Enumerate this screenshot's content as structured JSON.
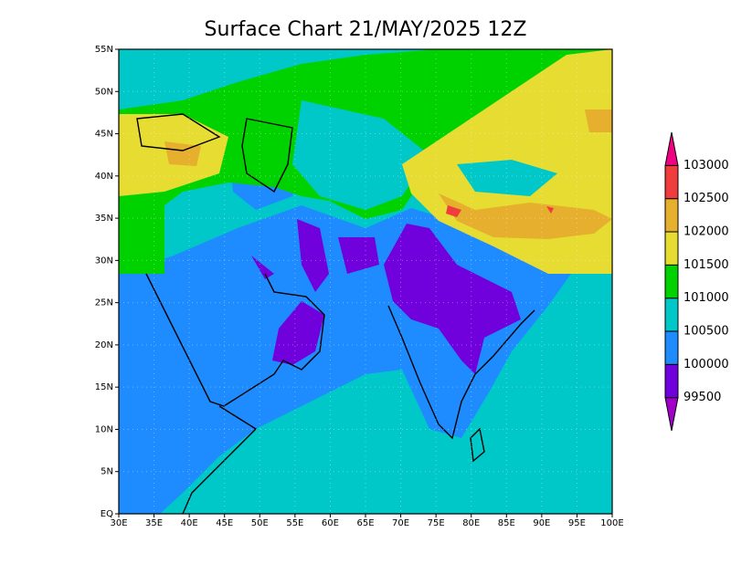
{
  "chart_data": {
    "type": "filled-contour",
    "title": "Surface Chart 21/MAY/2025 12Z",
    "xlim": [
      30,
      100
    ],
    "ylim": [
      0,
      55
    ],
    "xticks": [
      {
        "value": 30,
        "label": "30E"
      },
      {
        "value": 35,
        "label": "35E"
      },
      {
        "value": 40,
        "label": "40E"
      },
      {
        "value": 45,
        "label": "45E"
      },
      {
        "value": 50,
        "label": "50E"
      },
      {
        "value": 55,
        "label": "55E"
      },
      {
        "value": 60,
        "label": "60E"
      },
      {
        "value": 65,
        "label": "65E"
      },
      {
        "value": 70,
        "label": "70E"
      },
      {
        "value": 75,
        "label": "75E"
      },
      {
        "value": 80,
        "label": "80E"
      },
      {
        "value": 85,
        "label": "85E"
      },
      {
        "value": 90,
        "label": "90E"
      },
      {
        "value": 95,
        "label": "95E"
      },
      {
        "value": 100,
        "label": "100E"
      }
    ],
    "yticks": [
      {
        "value": 0,
        "label": "EQ"
      },
      {
        "value": 5,
        "label": "5N"
      },
      {
        "value": 10,
        "label": "10N"
      },
      {
        "value": 15,
        "label": "15N"
      },
      {
        "value": 20,
        "label": "20N"
      },
      {
        "value": 25,
        "label": "25N"
      },
      {
        "value": 30,
        "label": "30N"
      },
      {
        "value": 35,
        "label": "35N"
      },
      {
        "value": 40,
        "label": "40N"
      },
      {
        "value": 45,
        "label": "45N"
      },
      {
        "value": 50,
        "label": "50N"
      },
      {
        "value": 55,
        "label": "55N"
      }
    ],
    "grid": true,
    "levels": [
      99500,
      100000,
      100500,
      101000,
      101500,
      102000,
      102500,
      103000
    ],
    "colors": [
      "#a000c8",
      "#7000dc",
      "#1e8cff",
      "#00c8c8",
      "#00d200",
      "#e6dc32",
      "#e6af2d",
      "#f03c3c",
      "#f00082"
    ]
  }
}
